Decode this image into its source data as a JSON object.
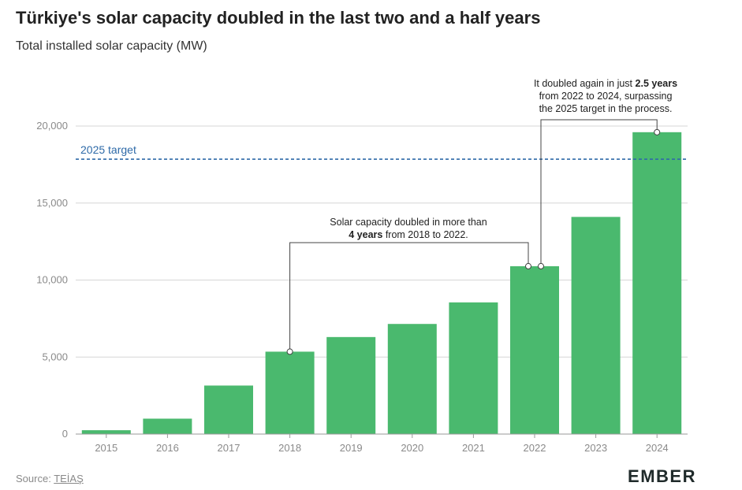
{
  "title": "Türkiye's solar capacity doubled in the last two and a half years",
  "subtitle": "Total installed solar capacity (MW)",
  "source_prefix": "Source: ",
  "source_link": "TEİAŞ",
  "logo": "EMBER",
  "colors": {
    "bar": "#4ab96e",
    "target": "#2e6aa8",
    "grid": "#d6d6d6",
    "annotation": "#444444"
  },
  "chart_data": {
    "type": "bar",
    "categories": [
      "2015",
      "2016",
      "2017",
      "2018",
      "2019",
      "2020",
      "2021",
      "2022",
      "2023",
      "2024"
    ],
    "values": [
      250,
      1000,
      3150,
      5350,
      6300,
      7150,
      8550,
      10900,
      14100,
      19600
    ],
    "ylim": [
      0,
      20000
    ],
    "yticks": [
      0,
      5000,
      10000,
      15000,
      20000
    ],
    "ytick_labels": [
      "0",
      "5,000",
      "10,000",
      "15,000",
      "20,000"
    ],
    "grid": true,
    "reference_line": {
      "label": "2025 target",
      "value": 17850
    },
    "annotations": [
      {
        "lines": [
          [
            {
              "text": "Solar capacity doubled in more than",
              "bold": false
            }
          ],
          [
            {
              "text": "4 years",
              "bold": true
            },
            {
              "text": " from 2018 to 2022.",
              "bold": false
            }
          ]
        ],
        "from": "2018",
        "to": "2022"
      },
      {
        "lines": [
          [
            {
              "text": "It doubled again in just ",
              "bold": false
            },
            {
              "text": "2.5 years",
              "bold": true
            }
          ],
          [
            {
              "text": "from 2022 to 2024, surpassing",
              "bold": false
            }
          ],
          [
            {
              "text": "the 2025 target in the process.",
              "bold": false
            }
          ]
        ],
        "from": "2022",
        "to": "2024"
      }
    ]
  }
}
